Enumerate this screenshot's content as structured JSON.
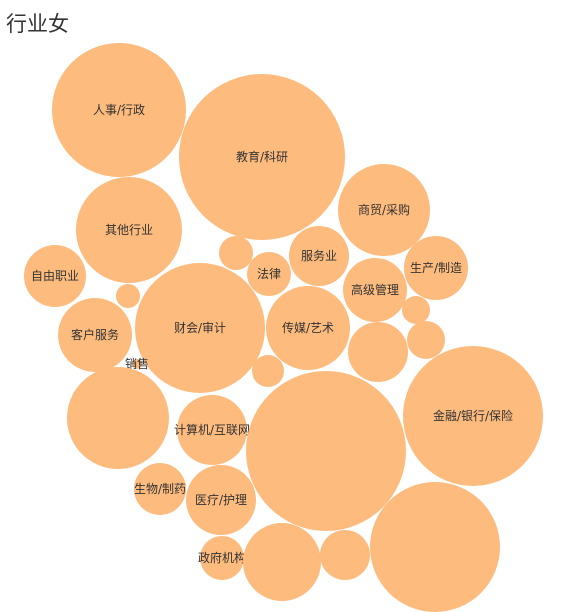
{
  "chart_data": {
    "type": "bubble-pack",
    "title": "行业女",
    "color": "#fdbb7e",
    "bubbles": [
      {
        "label": "人事/行政"
      },
      {
        "label": "教育/科研"
      },
      {
        "label": "商贸/采购"
      },
      {
        "label": "其他行业"
      },
      {
        "label": ""
      },
      {
        "label": "法律"
      },
      {
        "label": "服务业"
      },
      {
        "label": "生产/制造"
      },
      {
        "label": "自由职业"
      },
      {
        "label": "高级管理"
      },
      {
        "label": ""
      },
      {
        "label": "客户服务"
      },
      {
        "label": "财会/审计"
      },
      {
        "label": "传媒/艺术"
      },
      {
        "label": ""
      },
      {
        "label": ""
      },
      {
        "label": ""
      },
      {
        "label": ""
      },
      {
        "label": "销售"
      },
      {
        "label": "金融/银行/保险"
      },
      {
        "label": ""
      },
      {
        "label": "计算机/互联网"
      },
      {
        "label": ""
      },
      {
        "label": "生物/制药"
      },
      {
        "label": "医疗/护理"
      },
      {
        "label": ""
      },
      {
        "label": "政府机构"
      },
      {
        "label": ""
      },
      {
        "label": ""
      }
    ]
  }
}
